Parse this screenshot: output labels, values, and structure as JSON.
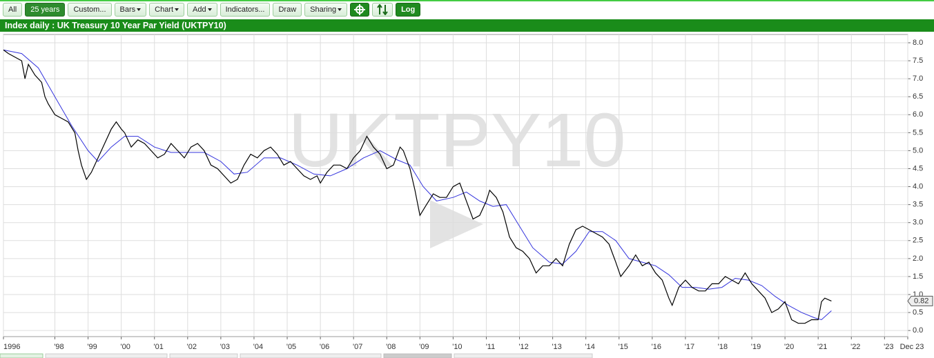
{
  "toolbar": {
    "buttons": [
      "All",
      "25 years",
      "Custom...",
      "Bars",
      "Chart",
      "Add",
      "Indicators...",
      "Draw",
      "Sharing",
      "Log"
    ]
  },
  "header": {
    "title": "Index daily : UK Treasury 10 Year Par Yield (UKTPY10)"
  },
  "chart_data": {
    "type": "line",
    "watermark": "UKTPY10",
    "grid": true,
    "xlim": [
      1996.45,
      2023.7
    ],
    "ylim": [
      -0.17,
      8.23
    ],
    "xticks": [
      {
        "value": 1996.45,
        "label": "1996"
      },
      {
        "value": 1998,
        "label": "'98"
      },
      {
        "value": 1999,
        "label": "'99"
      },
      {
        "value": 2000,
        "label": "'00"
      },
      {
        "value": 2001,
        "label": "'01"
      },
      {
        "value": 2002,
        "label": "'02"
      },
      {
        "value": 2003,
        "label": "'03"
      },
      {
        "value": 2004,
        "label": "'04"
      },
      {
        "value": 2005,
        "label": "'05"
      },
      {
        "value": 2006,
        "label": "'06"
      },
      {
        "value": 2007,
        "label": "'07"
      },
      {
        "value": 2008,
        "label": "'08"
      },
      {
        "value": 2009,
        "label": "'09"
      },
      {
        "value": 2010,
        "label": "'10"
      },
      {
        "value": 2011,
        "label": "'11"
      },
      {
        "value": 2012,
        "label": "'12"
      },
      {
        "value": 2013,
        "label": "'13"
      },
      {
        "value": 2014,
        "label": "'14"
      },
      {
        "value": 2015,
        "label": "'15"
      },
      {
        "value": 2016,
        "label": "'16"
      },
      {
        "value": 2017,
        "label": "'17"
      },
      {
        "value": 2018,
        "label": "'18"
      },
      {
        "value": 2019,
        "label": "'19"
      },
      {
        "value": 2020,
        "label": "'20"
      },
      {
        "value": 2021,
        "label": "'21"
      },
      {
        "value": 2022,
        "label": "'22"
      },
      {
        "value": 2023,
        "label": "'23"
      },
      {
        "value": 2023.7,
        "label": "Dec 23"
      }
    ],
    "yticks": [
      {
        "value": 0,
        "label": "0.0"
      },
      0.5,
      {
        "value": 1,
        "label": "1.0"
      },
      1.5,
      {
        "value": 2,
        "label": "2.0"
      },
      2.5,
      {
        "value": 3,
        "label": "3.0"
      },
      3.5,
      {
        "value": 4,
        "label": "4.0"
      },
      4.5,
      {
        "value": 5,
        "label": "5.0"
      },
      5.5,
      {
        "value": 6,
        "label": "6.0"
      },
      6.5,
      {
        "value": 7,
        "label": "7.0"
      },
      7.5,
      {
        "value": 8,
        "label": "8.0"
      }
    ],
    "last_value": 0.82,
    "series": [
      {
        "name": "UKTPY10",
        "color": "#000000",
        "x": [
          1996.45,
          1996.6,
          1996.8,
          1997.0,
          1997.1,
          1997.2,
          1997.4,
          1997.6,
          1997.7,
          1997.8,
          1998.0,
          1998.2,
          1998.4,
          1998.6,
          1998.7,
          1998.8,
          1998.95,
          1999.1,
          1999.3,
          1999.5,
          1999.7,
          1999.85,
          2000.0,
          2000.1,
          2000.3,
          2000.5,
          2000.7,
          2000.9,
          2001.1,
          2001.3,
          2001.5,
          2001.7,
          2001.9,
          2002.1,
          2002.3,
          2002.5,
          2002.7,
          2002.9,
          2003.1,
          2003.3,
          2003.5,
          2003.7,
          2003.9,
          2004.1,
          2004.3,
          2004.5,
          2004.7,
          2004.9,
          2005.1,
          2005.3,
          2005.5,
          2005.7,
          2005.9,
          2006.0,
          2006.2,
          2006.4,
          2006.6,
          2006.8,
          2007.0,
          2007.2,
          2007.4,
          2007.6,
          2007.8,
          2008.0,
          2008.2,
          2008.4,
          2008.5,
          2008.7,
          2008.85,
          2009.0,
          2009.2,
          2009.4,
          2009.6,
          2009.8,
          2010.0,
          2010.2,
          2010.4,
          2010.6,
          2010.8,
          2011.0,
          2011.1,
          2011.3,
          2011.5,
          2011.7,
          2011.9,
          2012.1,
          2012.3,
          2012.5,
          2012.7,
          2012.9,
          2013.1,
          2013.3,
          2013.5,
          2013.7,
          2013.9,
          2014.1,
          2014.3,
          2014.5,
          2014.7,
          2014.9,
          2015.05,
          2015.3,
          2015.5,
          2015.7,
          2015.9,
          2016.1,
          2016.3,
          2016.5,
          2016.6,
          2016.8,
          2017.0,
          2017.2,
          2017.4,
          2017.6,
          2017.8,
          2018.0,
          2018.2,
          2018.4,
          2018.6,
          2018.8,
          2019.0,
          2019.2,
          2019.4,
          2019.6,
          2019.8,
          2020.0,
          2020.2,
          2020.4,
          2020.6,
          2020.8,
          2021.0,
          2021.1,
          2021.2,
          2021.4
        ],
        "values": [
          7.8,
          7.7,
          7.6,
          7.5,
          7.0,
          7.4,
          7.1,
          6.9,
          6.5,
          6.3,
          6.0,
          5.9,
          5.8,
          5.5,
          5.0,
          4.6,
          4.2,
          4.4,
          4.8,
          5.2,
          5.6,
          5.8,
          5.6,
          5.5,
          5.1,
          5.3,
          5.2,
          5.0,
          4.8,
          4.9,
          5.2,
          5.0,
          4.8,
          5.1,
          5.2,
          5.0,
          4.6,
          4.5,
          4.3,
          4.1,
          4.2,
          4.6,
          4.9,
          4.8,
          5.0,
          5.1,
          4.9,
          4.6,
          4.7,
          4.5,
          4.3,
          4.2,
          4.3,
          4.1,
          4.4,
          4.6,
          4.6,
          4.5,
          4.8,
          5.0,
          5.4,
          5.1,
          4.9,
          4.5,
          4.6,
          5.1,
          5.0,
          4.5,
          3.9,
          3.2,
          3.5,
          3.8,
          3.7,
          3.7,
          4.0,
          4.1,
          3.6,
          3.1,
          3.2,
          3.6,
          3.9,
          3.7,
          3.3,
          2.6,
          2.3,
          2.2,
          2.0,
          1.6,
          1.8,
          1.8,
          2.0,
          1.8,
          2.4,
          2.8,
          2.9,
          2.8,
          2.7,
          2.6,
          2.4,
          1.9,
          1.5,
          1.8,
          2.1,
          1.8,
          1.9,
          1.6,
          1.4,
          0.9,
          0.7,
          1.2,
          1.4,
          1.2,
          1.1,
          1.1,
          1.3,
          1.3,
          1.5,
          1.4,
          1.3,
          1.6,
          1.3,
          1.1,
          0.9,
          0.5,
          0.6,
          0.8,
          0.3,
          0.2,
          0.2,
          0.3,
          0.3,
          0.8,
          0.9,
          0.82
        ]
      },
      {
        "color": "#3333dd",
        "x": [
          1996.45,
          1997.0,
          1997.5,
          1998.0,
          1998.5,
          1999.0,
          1999.3,
          1999.7,
          2000.1,
          2000.5,
          2001.0,
          2001.5,
          2002.0,
          2002.5,
          2003.0,
          2003.4,
          2003.8,
          2004.3,
          2004.8,
          2005.3,
          2005.8,
          2006.3,
          2006.8,
          2007.3,
          2007.8,
          2008.3,
          2008.7,
          2009.1,
          2009.5,
          2010.0,
          2010.4,
          2010.8,
          2011.2,
          2011.6,
          2012.0,
          2012.4,
          2012.9,
          2013.3,
          2013.7,
          2014.1,
          2014.5,
          2014.9,
          2015.3,
          2015.7,
          2016.1,
          2016.5,
          2016.9,
          2017.3,
          2017.7,
          2018.1,
          2018.5,
          2018.9,
          2019.3,
          2019.7,
          2020.1,
          2020.5,
          2020.9,
          2021.1,
          2021.4
        ],
        "values": [
          7.8,
          7.7,
          7.3,
          6.5,
          5.7,
          5.0,
          4.7,
          5.1,
          5.4,
          5.4,
          5.1,
          4.95,
          4.95,
          4.95,
          4.7,
          4.35,
          4.4,
          4.8,
          4.8,
          4.6,
          4.35,
          4.3,
          4.5,
          4.8,
          5.0,
          4.75,
          4.6,
          4.0,
          3.6,
          3.7,
          3.85,
          3.6,
          3.45,
          3.5,
          2.9,
          2.3,
          1.9,
          1.85,
          2.2,
          2.75,
          2.75,
          2.5,
          2.0,
          1.9,
          1.8,
          1.55,
          1.2,
          1.2,
          1.15,
          1.2,
          1.45,
          1.4,
          1.25,
          0.95,
          0.7,
          0.5,
          0.35,
          0.3,
          0.55
        ]
      }
    ]
  }
}
